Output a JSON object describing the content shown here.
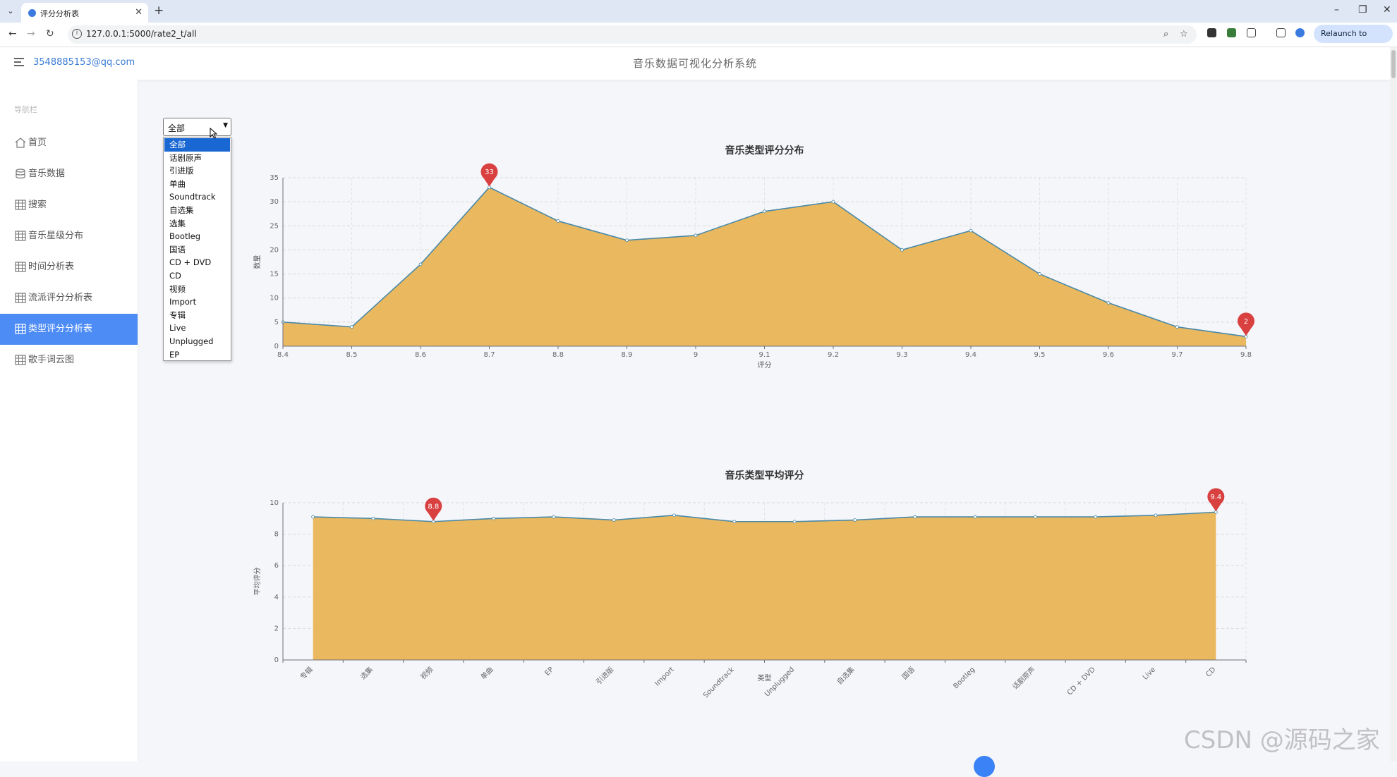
{
  "browser": {
    "tab_title": "评分分析表",
    "url": "127.0.0.1:5000/rate2_t/all",
    "relaunch_label": "Relaunch to update",
    "minimize": "–",
    "restore": "❐",
    "close": "✕",
    "new_tab": "+"
  },
  "header": {
    "user_email": "3548885153@qq.com",
    "app_title": "音乐数据可视化分析系统"
  },
  "sidebar": {
    "caption": "导航栏",
    "items": [
      {
        "label": "首页",
        "icon": "home-icon"
      },
      {
        "label": "音乐数据",
        "icon": "database-icon"
      },
      {
        "label": "搜索",
        "icon": "table-icon"
      },
      {
        "label": "音乐星级分布",
        "icon": "table-icon"
      },
      {
        "label": "时间分析表",
        "icon": "table-icon"
      },
      {
        "label": "流派评分分析表",
        "icon": "table-icon"
      },
      {
        "label": "类型评分分析表",
        "icon": "table-icon",
        "active": true
      },
      {
        "label": "歌手词云图",
        "icon": "table-icon"
      }
    ]
  },
  "filter": {
    "selected": "全部",
    "options": [
      "全部",
      "话剧原声",
      "引进版",
      "单曲",
      "Soundtrack",
      "自选集",
      "选集",
      "Bootleg",
      "国语",
      "CD + DVD",
      "CD",
      "视频",
      "Import",
      "专辑",
      "Live",
      "Unplugged",
      "EP"
    ]
  },
  "chart_data": [
    {
      "type": "area",
      "title": "音乐类型评分分布",
      "xlabel": "评分",
      "ylabel": "数量",
      "x": [
        "8.4",
        "8.5",
        "8.6",
        "8.7",
        "8.8",
        "8.9",
        "9",
        "9.1",
        "9.2",
        "9.3",
        "9.4",
        "9.5",
        "9.6",
        "9.7",
        "9.8"
      ],
      "values": [
        5,
        4,
        17,
        33,
        26,
        22,
        23,
        28,
        30,
        20,
        24,
        15,
        9,
        4,
        2
      ],
      "ylim": [
        0,
        35
      ],
      "yticks": [
        0,
        5,
        10,
        15,
        20,
        25,
        30,
        35
      ],
      "markers": [
        {
          "x": "8.7",
          "label": "33"
        },
        {
          "x": "9.8",
          "label": "2"
        }
      ],
      "grid": true,
      "fill_color": "#e9b556",
      "line_color": "#4a89a8",
      "marker_color": "#d94040"
    },
    {
      "type": "area",
      "title": "音乐类型平均评分",
      "xlabel": "类型",
      "ylabel": "平均评分",
      "categories": [
        "专辑",
        "选集",
        "视频",
        "单曲",
        "EP",
        "引进版",
        "Import",
        "Soundtrack",
        "Unplugged",
        "自选集",
        "国语",
        "Bootleg",
        "话剧原声",
        "CD + DVD",
        "Live",
        "CD"
      ],
      "values": [
        9.1,
        9.0,
        8.8,
        9.0,
        9.1,
        8.9,
        9.2,
        8.8,
        8.8,
        8.9,
        9.1,
        9.1,
        9.1,
        9.1,
        9.2,
        9.4
      ],
      "ylim": [
        0,
        10
      ],
      "yticks": [
        0,
        2,
        4,
        6,
        8,
        10
      ],
      "markers": [
        {
          "category": "视频",
          "label": "8.8"
        },
        {
          "category": "CD",
          "label": "9.4"
        }
      ],
      "grid": true,
      "fill_color": "#e9b556",
      "line_color": "#4a89a8",
      "marker_color": "#d94040"
    }
  ],
  "watermark": "CSDN @源码之家"
}
